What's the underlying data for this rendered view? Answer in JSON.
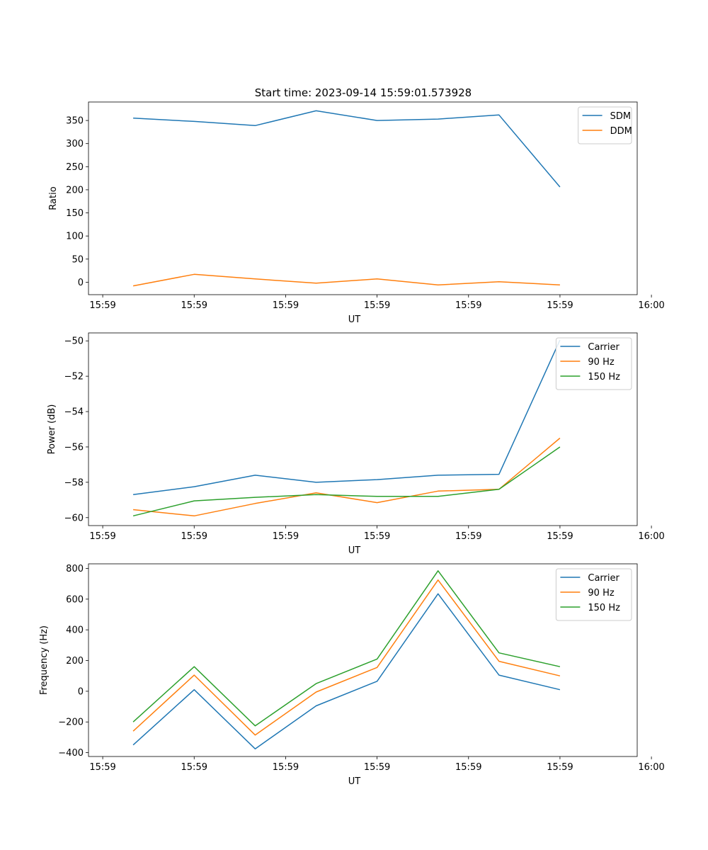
{
  "figure": {
    "title": "Start time: 2023-09-14 15:59:01.573928"
  },
  "chart_data": [
    {
      "type": "line",
      "title": "Start time: 2023-09-14 15:59:01.573928",
      "xlabel": "UT",
      "ylabel": "Ratio",
      "x_seconds": [
        1.7,
        2.3,
        2.9,
        3.5,
        4.1,
        4.7,
        5.3,
        5.9
      ],
      "xlim": [
        1.26,
        6.66
      ],
      "xticks": [
        1.4,
        2.3,
        3.2,
        4.1,
        5.0,
        5.9,
        6.8
      ],
      "xtick_labels": [
        "15:59",
        "15:59",
        "15:59",
        "15:59",
        "15:59",
        "15:59",
        "16:00"
      ],
      "ylim": [
        -27,
        390
      ],
      "yticks": [
        0,
        50,
        100,
        150,
        200,
        250,
        300,
        350
      ],
      "ytick_labels": [
        "0",
        "50",
        "100",
        "150",
        "200",
        "250",
        "300",
        "350"
      ],
      "legend": "top-right",
      "series": [
        {
          "name": "SDM",
          "color": "#1f77b4",
          "values": [
            355,
            348,
            339,
            371,
            350,
            353,
            362,
            206
          ]
        },
        {
          "name": "DDM",
          "color": "#ff7f0e",
          "values": [
            -8,
            17,
            7,
            -2,
            7,
            -6,
            1,
            -6
          ]
        }
      ]
    },
    {
      "type": "line",
      "xlabel": "UT",
      "ylabel": "Power (dB)",
      "x_seconds": [
        1.7,
        2.3,
        2.9,
        3.5,
        4.1,
        4.7,
        5.3,
        5.9
      ],
      "xlim": [
        1.26,
        6.66
      ],
      "xticks": [
        1.4,
        2.3,
        3.2,
        4.1,
        5.0,
        5.9,
        6.8
      ],
      "xtick_labels": [
        "15:59",
        "15:59",
        "15:59",
        "15:59",
        "15:59",
        "15:59",
        "16:00"
      ],
      "ylim": [
        -60.45,
        -49.55
      ],
      "yticks": [
        -60,
        -58,
        -56,
        -54,
        -52,
        -50
      ],
      "ytick_labels": [
        "−60",
        "−58",
        "−56",
        "−54",
        "−52",
        "−50"
      ],
      "legend": "top-right",
      "series": [
        {
          "name": "Carrier",
          "color": "#1f77b4",
          "values": [
            -58.7,
            -58.25,
            -57.6,
            -58.0,
            -57.85,
            -57.6,
            -57.55,
            -49.95
          ]
        },
        {
          "name": "90 Hz",
          "color": "#ff7f0e",
          "values": [
            -59.55,
            -59.9,
            -59.2,
            -58.6,
            -59.15,
            -58.5,
            -58.4,
            -55.5
          ]
        },
        {
          "name": "150 Hz",
          "color": "#2ca02c",
          "values": [
            -59.9,
            -59.05,
            -58.85,
            -58.7,
            -58.8,
            -58.8,
            -58.4,
            -56.0
          ]
        }
      ]
    },
    {
      "type": "line",
      "xlabel": "UT",
      "ylabel": "Frequency (Hz)",
      "x_seconds": [
        1.7,
        2.3,
        2.9,
        3.5,
        4.1,
        4.7,
        5.3,
        5.9
      ],
      "xlim": [
        1.26,
        6.66
      ],
      "xticks": [
        1.4,
        2.3,
        3.2,
        4.1,
        5.0,
        5.9,
        6.8
      ],
      "xtick_labels": [
        "15:59",
        "15:59",
        "15:59",
        "15:59",
        "15:59",
        "15:59",
        "16:00"
      ],
      "ylim": [
        -425,
        830
      ],
      "yticks": [
        -400,
        -200,
        0,
        200,
        400,
        600,
        800
      ],
      "ytick_labels": [
        "−400",
        "−200",
        "0",
        "200",
        "400",
        "600",
        "800"
      ],
      "legend": "top-right",
      "series": [
        {
          "name": "Carrier",
          "color": "#1f77b4",
          "values": [
            -350,
            10,
            -375,
            -95,
            65,
            635,
            105,
            10
          ]
        },
        {
          "name": "90 Hz",
          "color": "#ff7f0e",
          "values": [
            -260,
            105,
            -285,
            -5,
            155,
            725,
            195,
            100
          ]
        },
        {
          "name": "150 Hz",
          "color": "#2ca02c",
          "values": [
            -200,
            160,
            -225,
            50,
            210,
            785,
            250,
            160
          ]
        }
      ]
    }
  ]
}
